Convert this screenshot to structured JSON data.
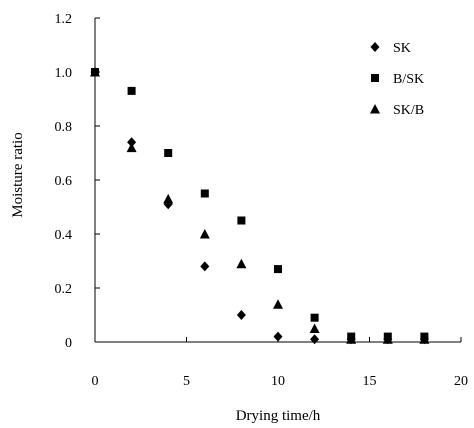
{
  "chart_data": {
    "type": "scatter",
    "xlabel": "Drying time/h",
    "ylabel": "Moisture ratio",
    "xlim": [
      0,
      20
    ],
    "ylim": [
      0,
      1.2
    ],
    "x_ticks": [
      0,
      5,
      10,
      15,
      20
    ],
    "y_ticks": [
      0,
      0.2,
      0.4,
      0.6,
      0.8,
      1.0,
      1.2
    ],
    "x_tick_labels": [
      "0",
      "5",
      "10",
      "15",
      "20"
    ],
    "y_tick_labels": [
      "0",
      "0.2",
      "0.4",
      "0.6",
      "0.8",
      "1.0",
      "1.2"
    ],
    "grid": false,
    "legend_position": "top-right",
    "series": [
      {
        "name": "SK",
        "marker": "diamond",
        "color": "#000000",
        "x": [
          0,
          2,
          4,
          6,
          8,
          10,
          12,
          14,
          16,
          18
        ],
        "y": [
          1.0,
          0.74,
          0.51,
          0.28,
          0.1,
          0.02,
          0.01,
          0.01,
          0.01,
          0.01
        ]
      },
      {
        "name": "B/SK",
        "marker": "square",
        "color": "#000000",
        "x": [
          0,
          2,
          4,
          6,
          8,
          10,
          12,
          14,
          16,
          18
        ],
        "y": [
          1.0,
          0.93,
          0.7,
          0.55,
          0.45,
          0.27,
          0.09,
          0.02,
          0.02,
          0.02
        ]
      },
      {
        "name": "SK/B",
        "marker": "triangle",
        "color": "#000000",
        "x": [
          0,
          2,
          4,
          6,
          8,
          10,
          12,
          14,
          16,
          18
        ],
        "y": [
          1.0,
          0.72,
          0.53,
          0.4,
          0.29,
          0.14,
          0.05,
          0.01,
          0.01,
          0.01
        ]
      }
    ]
  }
}
